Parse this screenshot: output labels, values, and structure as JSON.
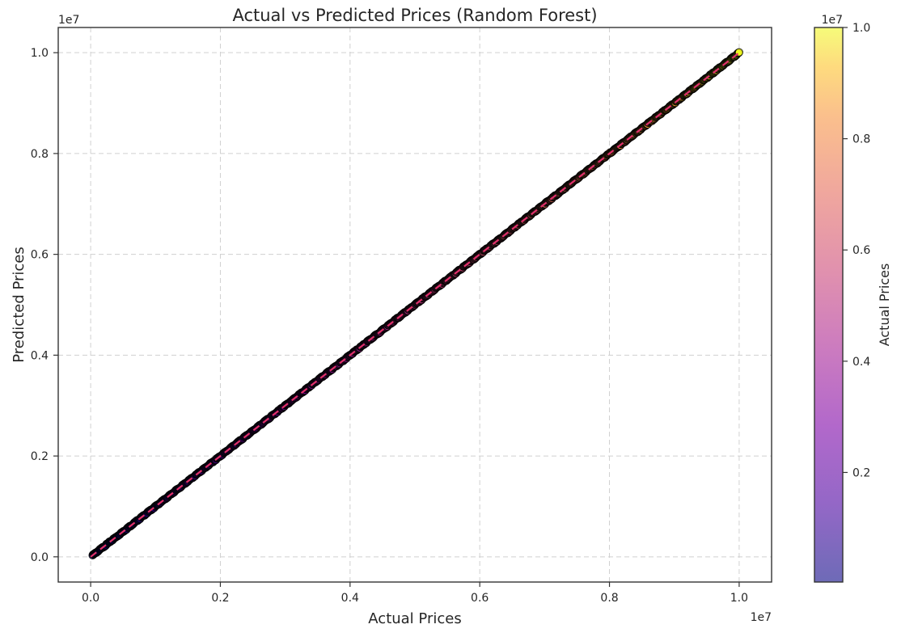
{
  "chart_data": {
    "type": "scatter",
    "title": "Actual vs Predicted Prices (Random Forest)",
    "xlabel": "Actual Prices",
    "ylabel": "Predicted Prices",
    "x_offset_label": "1e7",
    "y_offset_label": "1e7",
    "xlim": [
      -0.05,
      1.05
    ],
    "ylim": [
      -0.05,
      1.05
    ],
    "x_scale_note": "values in units of 1e7",
    "xticks": [
      0.0,
      0.2,
      0.4,
      0.6,
      0.8,
      1.0
    ],
    "yticks": [
      0.0,
      0.2,
      0.4,
      0.6,
      0.8,
      1.0
    ],
    "xtick_labels": [
      "0.0",
      "0.2",
      "0.4",
      "0.6",
      "0.8",
      "1.0"
    ],
    "ytick_labels": [
      "0.0",
      "0.2",
      "0.4",
      "0.6",
      "0.8",
      "1.0"
    ],
    "grid": true,
    "grid_style": "dashed",
    "points_range": {
      "x_start": 0.003,
      "x_end": 1.0
    },
    "points_relation": "predicted ≈ actual (points lie on y = x)",
    "reference_line": {
      "style": "dashed",
      "x": [
        0.0,
        1.0
      ],
      "y": [
        0.0,
        1.0
      ]
    },
    "colormap": "plasma",
    "colorbar": {
      "label": "Actual Prices",
      "offset_label": "1e7",
      "range": [
        0.003,
        1.0
      ],
      "ticks": [
        0.2,
        0.4,
        0.6,
        0.8,
        1.0
      ],
      "tick_labels": [
        "0.2",
        "0.4",
        "0.6",
        "0.8",
        "1.0"
      ]
    },
    "marker_edge_color": "#000000"
  }
}
